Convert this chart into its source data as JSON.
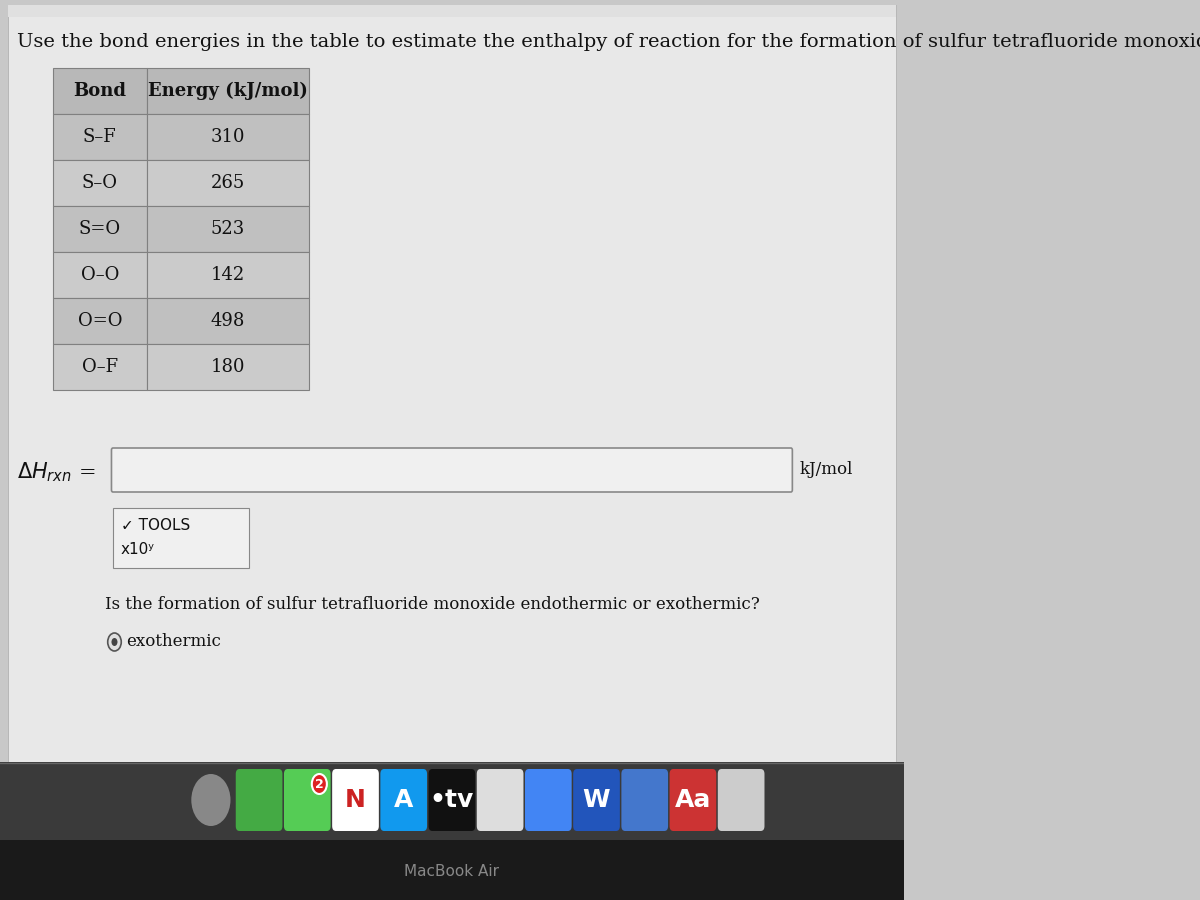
{
  "title": "Use the bond energies in the table to estimate the enthalpy of reaction for the formation of sulfur tetrafluoride monoxide.",
  "table_headers": [
    "Bond",
    "Energy (kJ/mol)"
  ],
  "table_rows": [
    [
      "S–F",
      "310"
    ],
    [
      "S–O",
      "265"
    ],
    [
      "S=O",
      "523"
    ],
    [
      "O–O",
      "142"
    ],
    [
      "O=O",
      "498"
    ],
    [
      "O–F",
      "180"
    ]
  ],
  "unit_label": "kJ/mol",
  "tools_label": "✓ TOOLS",
  "x10_label": "x10ʸ",
  "question": "Is the formation of sulfur tetrafluoride monoxide endothermic or exothermic?",
  "answer": "exothermic",
  "page_bg": "#c8c8c8",
  "white_area_bg": "#e8e8e8",
  "table_header_bg": "#b8b8b8",
  "table_row_bg1": "#c0c0c0",
  "table_row_bg2": "#cbcbcb",
  "border_color": "#808080",
  "text_color": "#111111",
  "input_box_color": "#f0f0f0",
  "input_box_border": "#888888",
  "dock_bg": "#3a3a3a",
  "dock_separator": "#555555",
  "title_fontsize": 14,
  "table_fontsize": 13,
  "body_fontsize": 12
}
